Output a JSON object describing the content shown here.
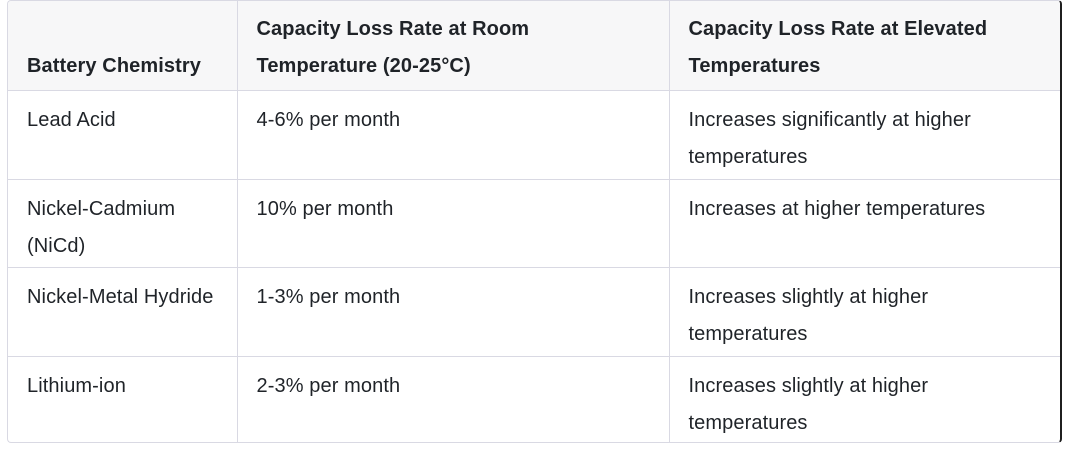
{
  "table": {
    "headers": [
      "Battery Chemistry",
      "Capacity Loss Rate at Room Temperature (20-25°C)",
      "Capacity Loss Rate at Elevated Temperatures"
    ],
    "rows": [
      [
        "Lead Acid",
        "4-6% per month",
        "Increases significantly at higher temperatures"
      ],
      [
        "Nickel-Cadmium (NiCd)",
        "10% per month",
        "Increases at higher temperatures"
      ],
      [
        "Nickel-Metal Hydride",
        "1-3% per month",
        "Increases slightly at higher temperatures"
      ],
      [
        "Lithium-ion",
        "2-3% per month",
        "Increases slightly at higher temperatures"
      ]
    ]
  }
}
